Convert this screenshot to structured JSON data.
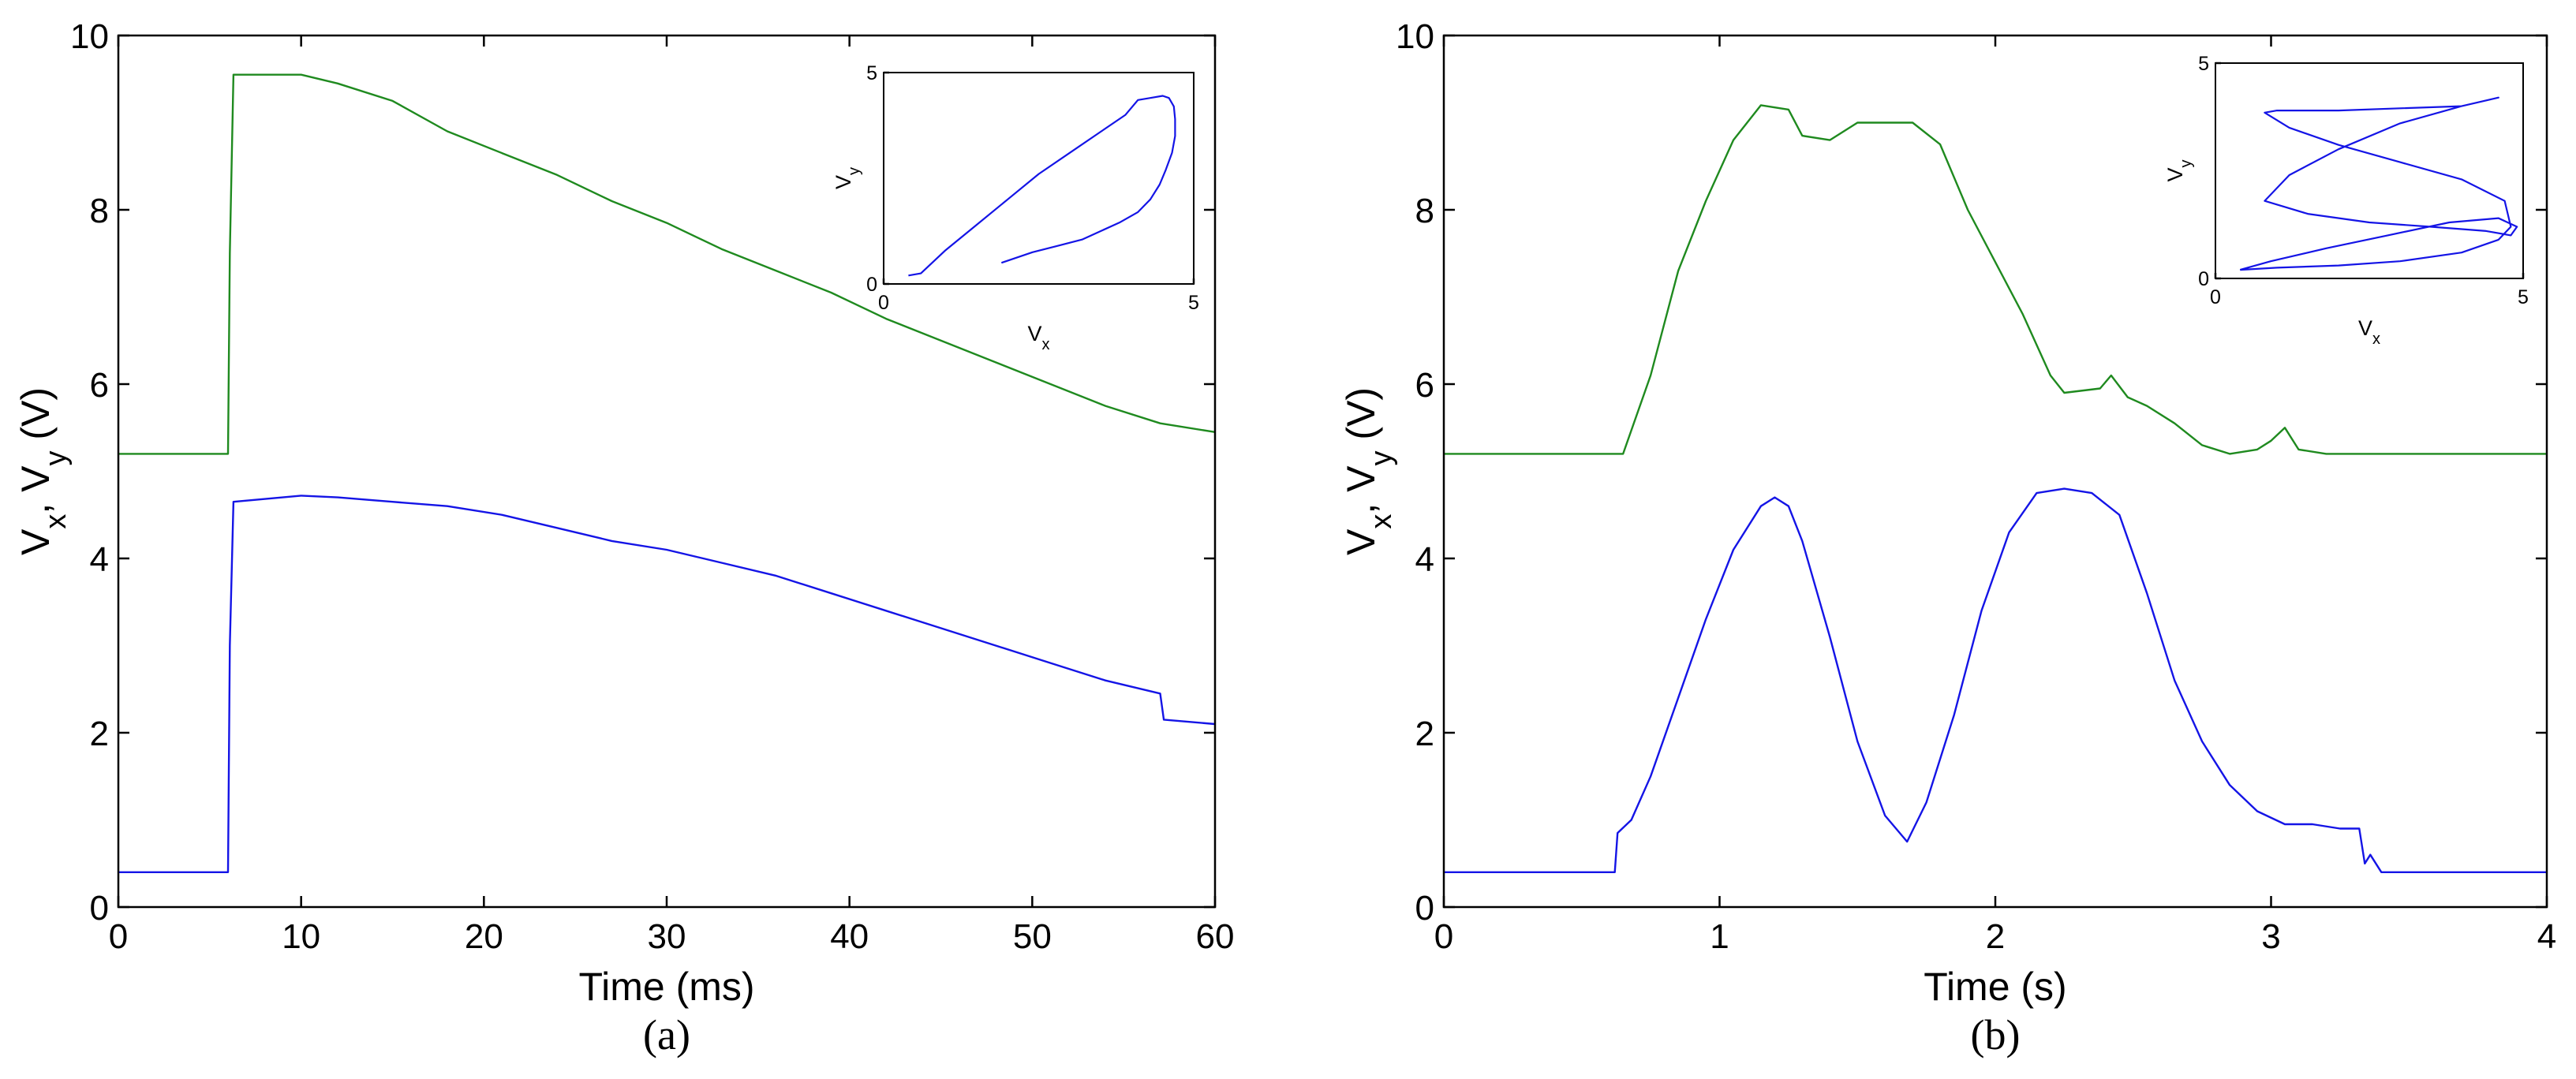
{
  "colors": {
    "green": "#1f8a1f",
    "blue": "#1414e6",
    "axis": "#000000"
  },
  "chart_data": [
    {
      "type": "line",
      "panel": "(a)",
      "xlabel": "Time (ms)",
      "ylabel": "V_x, V_y (V)",
      "xlim": [
        0,
        60
      ],
      "ylim": [
        0,
        10
      ],
      "xticks": [
        0,
        10,
        20,
        30,
        40,
        50,
        60
      ],
      "yticks": [
        0,
        2,
        4,
        6,
        8,
        10
      ],
      "grid": false,
      "series": [
        {
          "color": "green",
          "x": [
            0,
            6,
            6.1,
            6.3,
            10,
            12,
            15,
            18,
            21,
            24,
            27,
            30,
            33,
            36,
            39,
            42,
            45,
            48,
            51,
            54,
            57,
            60
          ],
          "values": [
            5.2,
            5.2,
            7.5,
            9.55,
            9.55,
            9.45,
            9.25,
            8.9,
            8.65,
            8.4,
            8.1,
            7.85,
            7.55,
            7.3,
            7.05,
            6.75,
            6.5,
            6.25,
            6.0,
            5.75,
            5.55,
            5.45
          ]
        },
        {
          "color": "blue",
          "x": [
            0,
            6,
            6.1,
            6.3,
            10,
            12,
            15,
            18,
            21,
            24,
            27,
            30,
            33,
            36,
            39,
            42,
            45,
            48,
            51,
            54,
            57,
            57.2,
            60
          ],
          "values": [
            0.4,
            0.4,
            3.0,
            4.65,
            4.72,
            4.7,
            4.65,
            4.6,
            4.5,
            4.35,
            4.2,
            4.1,
            3.95,
            3.8,
            3.6,
            3.4,
            3.2,
            3.0,
            2.8,
            2.6,
            2.45,
            2.15,
            2.1
          ]
        }
      ],
      "inset": {
        "xlabel": "V_x",
        "ylabel": "V_y",
        "xlim": [
          0,
          5
        ],
        "ylim": [
          0,
          5
        ],
        "xticks": [
          0,
          5
        ],
        "yticks": [
          0,
          5
        ],
        "series": [
          {
            "color": "blue",
            "x": [
              0.4,
              0.6,
              1.0,
              1.5,
              2.0,
              2.5,
              3.0,
              3.5,
              3.9,
              4.1,
              4.3,
              4.5,
              4.6,
              4.68,
              4.7,
              4.7,
              4.65,
              4.55,
              4.45,
              4.3,
              4.1,
              3.8,
              3.5,
              3.2,
              2.8,
              2.4,
              2.1,
              1.9
            ],
            "values": [
              0.2,
              0.25,
              0.8,
              1.4,
              2.0,
              2.6,
              3.1,
              3.6,
              4.0,
              4.35,
              4.4,
              4.45,
              4.4,
              4.2,
              3.9,
              3.5,
              3.1,
              2.7,
              2.35,
              2.0,
              1.7,
              1.45,
              1.25,
              1.05,
              0.9,
              0.75,
              0.6,
              0.5
            ]
          }
        ]
      }
    },
    {
      "type": "line",
      "panel": "(b)",
      "xlabel": "Time (s)",
      "ylabel": "V_x, V_y (V)",
      "xlim": [
        0,
        4
      ],
      "ylim": [
        0,
        10
      ],
      "xticks": [
        0,
        1,
        2,
        3,
        4
      ],
      "yticks": [
        0,
        2,
        4,
        6,
        8,
        10
      ],
      "grid": false,
      "series": [
        {
          "color": "green",
          "x": [
            0,
            0.65,
            0.75,
            0.85,
            0.95,
            1.05,
            1.15,
            1.25,
            1.3,
            1.4,
            1.5,
            1.6,
            1.7,
            1.8,
            1.9,
            2.0,
            2.1,
            2.2,
            2.25,
            2.38,
            2.42,
            2.48,
            2.55,
            2.65,
            2.75,
            2.85,
            2.95,
            3.0,
            3.05,
            3.1,
            3.2,
            3.5,
            4.0
          ],
          "values": [
            5.2,
            5.2,
            6.1,
            7.3,
            8.1,
            8.8,
            9.2,
            9.15,
            8.85,
            8.8,
            9.0,
            9.0,
            9.0,
            8.75,
            8.0,
            7.4,
            6.8,
            6.1,
            5.9,
            5.95,
            6.1,
            5.85,
            5.75,
            5.55,
            5.3,
            5.2,
            5.25,
            5.35,
            5.5,
            5.25,
            5.2,
            5.2,
            5.2
          ]
        },
        {
          "color": "blue",
          "x": [
            0,
            0.62,
            0.63,
            0.68,
            0.75,
            0.85,
            0.95,
            1.05,
            1.15,
            1.2,
            1.25,
            1.3,
            1.4,
            1.5,
            1.6,
            1.68,
            1.75,
            1.85,
            1.95,
            2.05,
            2.15,
            2.25,
            2.35,
            2.45,
            2.55,
            2.65,
            2.75,
            2.85,
            2.95,
            3.05,
            3.15,
            3.25,
            3.32,
            3.34,
            3.36,
            3.4,
            4.0
          ],
          "values": [
            0.4,
            0.4,
            0.85,
            1.0,
            1.5,
            2.4,
            3.3,
            4.1,
            4.6,
            4.7,
            4.6,
            4.2,
            3.1,
            1.9,
            1.05,
            0.75,
            1.2,
            2.2,
            3.4,
            4.3,
            4.75,
            4.8,
            4.75,
            4.5,
            3.6,
            2.6,
            1.9,
            1.4,
            1.1,
            0.95,
            0.95,
            0.9,
            0.9,
            0.5,
            0.6,
            0.4,
            0.4
          ]
        }
      ],
      "inset": {
        "xlabel": "V_x",
        "ylabel": "V_y",
        "xlim": [
          0,
          5
        ],
        "ylim": [
          0,
          5
        ],
        "xticks": [
          0,
          5
        ],
        "yticks": [
          0,
          5
        ],
        "series": [
          {
            "color": "blue",
            "x": [
              0.4,
              1.0,
              2.0,
              3.0,
              4.0,
              4.6,
              4.8,
              4.7,
              4.0,
              3.0,
              2.0,
              1.2,
              0.8,
              1.0,
              2.0,
              3.0,
              4.0,
              4.6,
              4.0,
              3.0,
              2.0,
              1.2,
              0.8,
              1.5,
              2.5,
              3.5,
              4.4,
              4.8,
              4.9,
              4.6,
              3.8,
              2.8,
              1.8,
              0.9,
              0.4
            ],
            "values": [
              0.2,
              0.25,
              0.3,
              0.4,
              0.6,
              0.9,
              1.2,
              1.8,
              2.3,
              2.7,
              3.1,
              3.5,
              3.85,
              3.9,
              3.9,
              3.95,
              4.0,
              4.2,
              4.0,
              3.6,
              3.0,
              2.4,
              1.8,
              1.5,
              1.3,
              1.2,
              1.1,
              1.0,
              1.2,
              1.4,
              1.3,
              1.0,
              0.7,
              0.4,
              0.2
            ]
          }
        ]
      }
    }
  ]
}
